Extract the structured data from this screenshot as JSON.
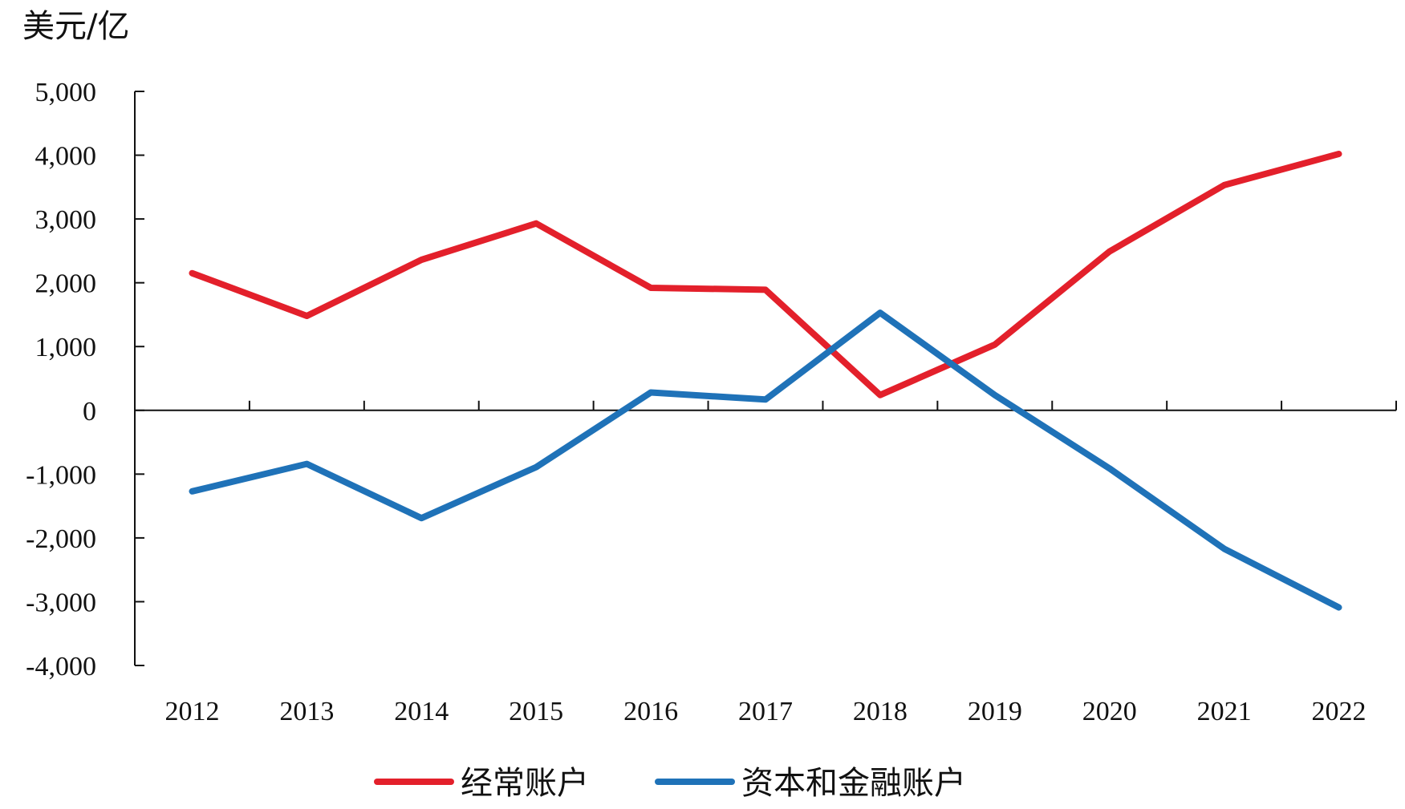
{
  "chart_data": {
    "type": "line",
    "ylabel": "美元/亿",
    "categories": [
      "2012",
      "2013",
      "2014",
      "2015",
      "2016",
      "2017",
      "2018",
      "2019",
      "2020",
      "2021",
      "2022"
    ],
    "ylim": [
      -4000,
      5000
    ],
    "yticks": [
      5000,
      4000,
      3000,
      2000,
      1000,
      0,
      -1000,
      -2000,
      -3000,
      -4000
    ],
    "ytick_labels": [
      "5,000",
      "4,000",
      "3,000",
      "2,000",
      "1,000",
      "0",
      "-1,000",
      "-2,000",
      "-3,000",
      "-4,000"
    ],
    "grid": false,
    "legend_position": "bottom",
    "series": [
      {
        "name": "经常账户",
        "color": "#e3202b",
        "values": [
          2150,
          1480,
          2360,
          2930,
          1920,
          1890,
          240,
          1030,
          2490,
          3530,
          4020
        ]
      },
      {
        "name": "资本和金融账户",
        "color": "#1f72b8",
        "values": [
          -1270,
          -840,
          -1690,
          -890,
          280,
          170,
          1530,
          240,
          -910,
          -2170,
          -3090
        ]
      }
    ]
  }
}
